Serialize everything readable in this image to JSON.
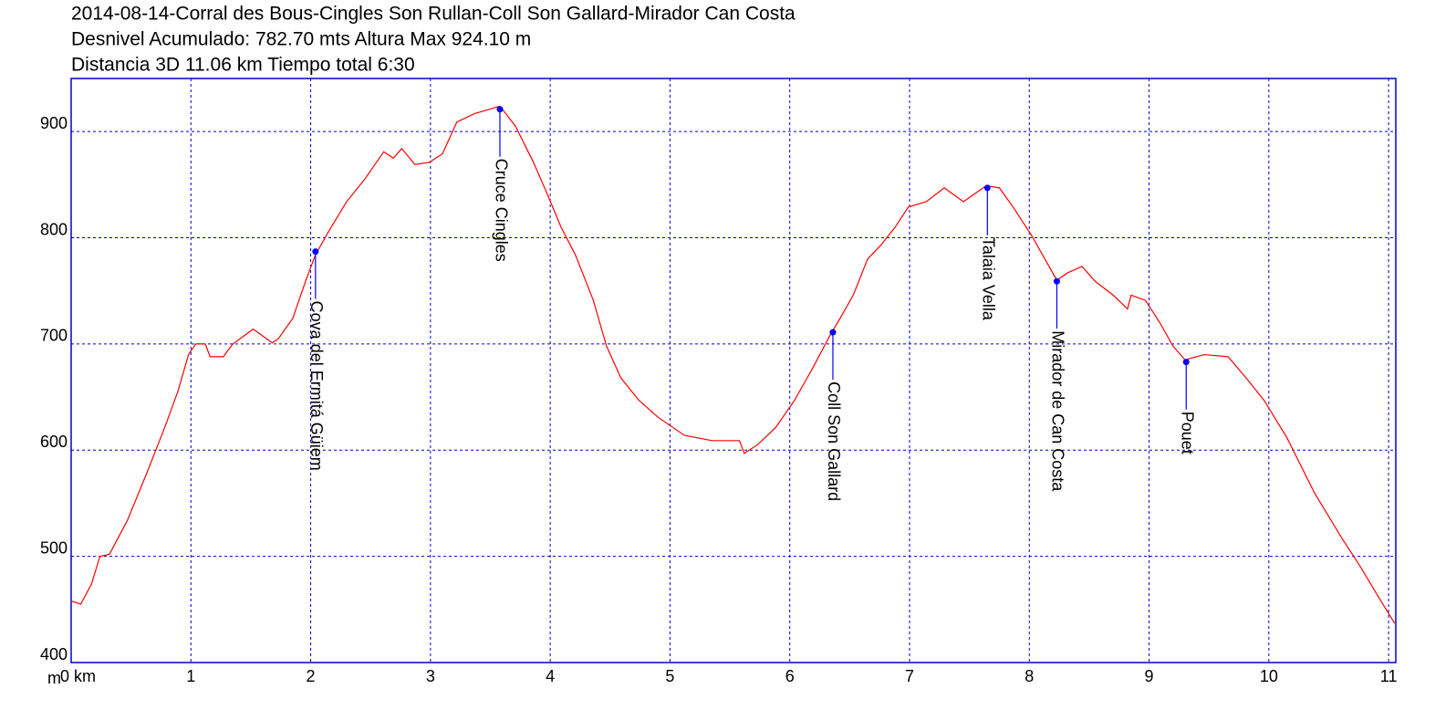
{
  "chart_data": {
    "type": "line",
    "title_lines": [
      "2014-08-14-Corral des Bous-Cingles Son Rullan-Coll Son Gallard-Mirador Can Costa",
      "Desnivel Acumulado: 782.70 mts  Altura Max 924.10 m",
      "Distancia 3D 11.06 km  Tiempo total 6:30"
    ],
    "y_unit": "m",
    "color": "#ff0000",
    "point_color": "#0000ff",
    "grid": true,
    "grid_color": "#0000cc",
    "xlim": [
      0,
      11.06
    ],
    "ylim": [
      400,
      950
    ],
    "xticks": [
      {
        "value": 0,
        "label": "0 km"
      },
      1,
      2,
      3,
      4,
      5,
      6,
      7,
      8,
      9,
      10,
      11
    ],
    "yticks": [
      400,
      500,
      600,
      700,
      800,
      900
    ],
    "x": [
      0,
      0.08,
      0.17,
      0.24,
      0.32,
      0.47,
      0.63,
      0.78,
      0.89,
      0.98,
      1.04,
      1.12,
      1.16,
      1.27,
      1.35,
      1.52,
      1.68,
      1.73,
      1.85,
      1.96,
      2.04,
      2.15,
      2.3,
      2.45,
      2.61,
      2.69,
      2.76,
      2.87,
      2.99,
      3.1,
      3.22,
      3.37,
      3.58,
      3.71,
      3.86,
      3.98,
      4.09,
      4.21,
      4.36,
      4.47,
      4.59,
      4.74,
      4.9,
      5.12,
      5.35,
      5.58,
      5.62,
      5.73,
      5.88,
      6.04,
      6.19,
      6.34,
      6.42,
      6.53,
      6.65,
      6.76,
      6.88,
      6.99,
      7.14,
      7.29,
      7.45,
      7.64,
      7.75,
      7.87,
      8.02,
      8.13,
      8.23,
      8.32,
      8.44,
      8.55,
      8.7,
      8.82,
      8.85,
      8.97,
      9.09,
      9.2,
      9.3,
      9.46,
      9.66,
      9.81,
      9.96,
      10.15,
      10.38,
      10.61,
      10.76,
      10.92,
      11.05
    ],
    "values": [
      458,
      455,
      474,
      500,
      502,
      534,
      578,
      621,
      655,
      690,
      700,
      700,
      688,
      688,
      700,
      714,
      701,
      705,
      724,
      760,
      784,
      806,
      834,
      855,
      881,
      875,
      884,
      869,
      871,
      879,
      909,
      917,
      924,
      905,
      871,
      840,
      810,
      784,
      741,
      698,
      668,
      647,
      631,
      614,
      609,
      609,
      597,
      605,
      621,
      647,
      677,
      709,
      724,
      746,
      780,
      793,
      810,
      829,
      834,
      847,
      834,
      849,
      847,
      828,
      802,
      780,
      760,
      767,
      773,
      759,
      746,
      733,
      746,
      741,
      720,
      698,
      685,
      690,
      688,
      668,
      647,
      612,
      560,
      517,
      491,
      461,
      437
    ],
    "annotations": [
      {
        "label": "Cova del Ermitá Güiem",
        "x": 2.04,
        "y": 787
      },
      {
        "label": "Cruce Cingles",
        "x": 3.58,
        "y": 921
      },
      {
        "label": "Coll Son Gallard",
        "x": 6.36,
        "y": 711
      },
      {
        "label": "Talaia Vella",
        "x": 7.65,
        "y": 847
      },
      {
        "label": "Mirador de Can Costa",
        "x": 8.23,
        "y": 759
      },
      {
        "label": "Pouet",
        "x": 9.31,
        "y": 683
      }
    ]
  }
}
